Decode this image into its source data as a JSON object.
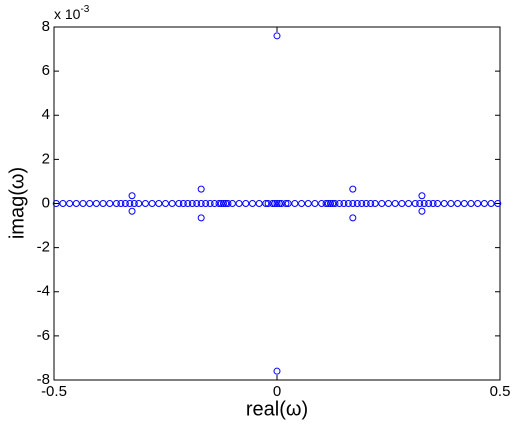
{
  "chart_data": {
    "type": "scatter",
    "xlabel": "real(ω)",
    "ylabel": "imag(ω)",
    "y_multiplier": {
      "base": "x 10",
      "exponent": "-3"
    },
    "color": "#0000ff",
    "xlim": [
      -0.5,
      0.5
    ],
    "ylim": [
      -8,
      8
    ],
    "xticks": [
      -0.5,
      0,
      0.5
    ],
    "yticks": [
      -8,
      -6,
      -4,
      -2,
      0,
      2,
      4,
      6,
      8
    ],
    "x": [
      -0.495,
      -0.48,
      -0.465,
      -0.45,
      -0.435,
      -0.42,
      -0.405,
      -0.39,
      -0.375,
      -0.36,
      -0.35,
      -0.34,
      -0.33,
      -0.32,
      -0.31,
      -0.295,
      -0.28,
      -0.265,
      -0.25,
      -0.235,
      -0.22,
      -0.21,
      -0.2,
      -0.19,
      -0.18,
      -0.17,
      -0.16,
      -0.15,
      -0.14,
      -0.13,
      -0.125,
      -0.12,
      -0.115,
      -0.11,
      -0.1,
      -0.085,
      -0.07,
      -0.055,
      -0.04,
      -0.025,
      -0.02,
      -0.01,
      -0.005,
      0,
      0.005,
      0.01,
      0.02,
      0.025,
      0.04,
      0.055,
      0.07,
      0.085,
      0.1,
      0.11,
      0.115,
      0.12,
      0.125,
      0.13,
      0.14,
      0.15,
      0.16,
      0.17,
      0.18,
      0.19,
      0.2,
      0.21,
      0.22,
      0.235,
      0.25,
      0.265,
      0.28,
      0.295,
      0.31,
      0.32,
      0.33,
      0.34,
      0.35,
      0.36,
      0.375,
      0.39,
      0.405,
      0.42,
      0.435,
      0.45,
      0.465,
      0.48,
      0.495,
      0,
      0,
      -0.17,
      -0.17,
      0.17,
      0.17,
      -0.325,
      -0.325,
      0.325,
      0.325
    ],
    "values": [
      0,
      0,
      0,
      0,
      0,
      0,
      0,
      0,
      0,
      0,
      0,
      0,
      0,
      0,
      0,
      0,
      0,
      0,
      0,
      0,
      0,
      0,
      0,
      0,
      0,
      0,
      0,
      0,
      0,
      0,
      0,
      0,
      0,
      0,
      0,
      0,
      0,
      0,
      0,
      0,
      0,
      0,
      0,
      0,
      0,
      0,
      0,
      0,
      0,
      0,
      0,
      0,
      0,
      0,
      0,
      0,
      0,
      0,
      0,
      0,
      0,
      0,
      0,
      0,
      0,
      0,
      0,
      0,
      0,
      0,
      0,
      0,
      0,
      0,
      0,
      0,
      0,
      0,
      0,
      0,
      0,
      0,
      0,
      0,
      0,
      0,
      0,
      7.6,
      -7.6,
      0.65,
      -0.65,
      0.65,
      -0.65,
      0.35,
      -0.35,
      0.35,
      -0.35
    ]
  }
}
